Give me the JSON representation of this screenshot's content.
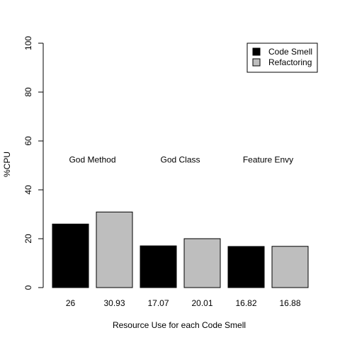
{
  "chart_data": {
    "type": "bar",
    "title": "",
    "xlabel": "Resource Use for each Code Smell",
    "ylabel": "%CPU",
    "ylim": [
      0,
      100
    ],
    "yticks": [
      0,
      20,
      40,
      60,
      80,
      100
    ],
    "grid": false,
    "legend_position": "top-right",
    "categories": [
      "26",
      "30.93",
      "17.07",
      "20.01",
      "16.82",
      "16.88"
    ],
    "values": [
      26,
      30.93,
      17.07,
      20.01,
      16.82,
      16.88
    ],
    "bar_series": [
      "Code Smell",
      "Refactoring",
      "Code Smell",
      "Refactoring",
      "Code Smell",
      "Refactoring"
    ],
    "series": [
      {
        "name": "Code Smell",
        "color": "#000000"
      },
      {
        "name": "Refactoring",
        "color": "#bebebe"
      }
    ],
    "group_labels": [
      "God Method",
      "God Class",
      "Feature Envy"
    ],
    "group_label_y": 50
  }
}
